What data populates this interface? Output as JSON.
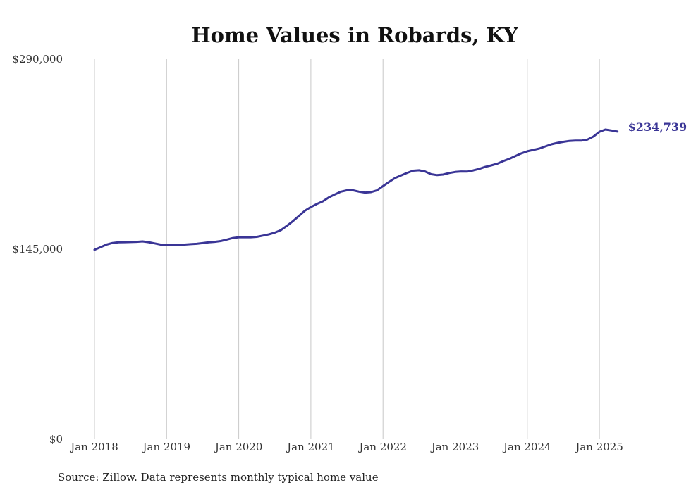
{
  "chart_data": {
    "type": "line",
    "title": "Home Values in Robards, KY",
    "xlabel": "",
    "ylabel": "",
    "ylim": [
      0,
      290000
    ],
    "yticks": [
      0,
      145000,
      290000
    ],
    "ytick_labels": [
      "$0",
      "$145,000",
      "$290,000"
    ],
    "xticks": [
      "Jan 2018",
      "Jan 2019",
      "Jan 2020",
      "Jan 2021",
      "Jan 2022",
      "Jan 2023",
      "Jan 2024",
      "Jan 2025"
    ],
    "grid": "vertical",
    "series": [
      {
        "color": "#3a3596",
        "end_label": "$234,739",
        "x": [
          "2018-01",
          "2018-02",
          "2018-03",
          "2018-04",
          "2018-05",
          "2018-06",
          "2018-07",
          "2018-08",
          "2018-09",
          "2018-10",
          "2018-11",
          "2018-12",
          "2019-01",
          "2019-02",
          "2019-03",
          "2019-04",
          "2019-05",
          "2019-06",
          "2019-07",
          "2019-08",
          "2019-09",
          "2019-10",
          "2019-11",
          "2019-12",
          "2020-01",
          "2020-02",
          "2020-03",
          "2020-04",
          "2020-05",
          "2020-06",
          "2020-07",
          "2020-08",
          "2020-09",
          "2020-10",
          "2020-11",
          "2020-12",
          "2021-01",
          "2021-02",
          "2021-03",
          "2021-04",
          "2021-05",
          "2021-06",
          "2021-07",
          "2021-08",
          "2021-09",
          "2021-10",
          "2021-11",
          "2021-12",
          "2022-01",
          "2022-02",
          "2022-03",
          "2022-04",
          "2022-05",
          "2022-06",
          "2022-07",
          "2022-08",
          "2022-09",
          "2022-10",
          "2022-11",
          "2022-12",
          "2023-01",
          "2023-02",
          "2023-03",
          "2023-04",
          "2023-05",
          "2023-06",
          "2023-07",
          "2023-08",
          "2023-09",
          "2023-10",
          "2023-11",
          "2023-12",
          "2024-01",
          "2024-02",
          "2024-03",
          "2024-04",
          "2024-05",
          "2024-06",
          "2024-07",
          "2024-08",
          "2024-09",
          "2024-10",
          "2024-11",
          "2024-12",
          "2025-01",
          "2025-02",
          "2025-03",
          "2025-04"
        ],
        "values": [
          144500,
          146500,
          148500,
          149700,
          150200,
          150300,
          150400,
          150600,
          150900,
          150300,
          149400,
          148500,
          148200,
          148100,
          148100,
          148500,
          148800,
          149100,
          149600,
          150200,
          150600,
          151200,
          152300,
          153500,
          154100,
          154100,
          154100,
          154400,
          155300,
          156300,
          157600,
          159500,
          162800,
          166300,
          170300,
          174300,
          177100,
          179500,
          181500,
          184500,
          186800,
          188900,
          189900,
          189900,
          188900,
          188200,
          188500,
          189900,
          193100,
          196300,
          199300,
          201300,
          203200,
          204900,
          205200,
          204300,
          202200,
          201500,
          201900,
          203100,
          203900,
          204300,
          204200,
          205100,
          206300,
          207800,
          208900,
          210200,
          212200,
          213900,
          216000,
          218100,
          219700,
          220700,
          221800,
          223400,
          225000,
          226100,
          226900,
          227600,
          227800,
          227800,
          228600,
          231000,
          234600,
          236300,
          235600,
          234739
        ]
      }
    ],
    "source": "Source: Zillow. Data represents monthly typical home value"
  }
}
